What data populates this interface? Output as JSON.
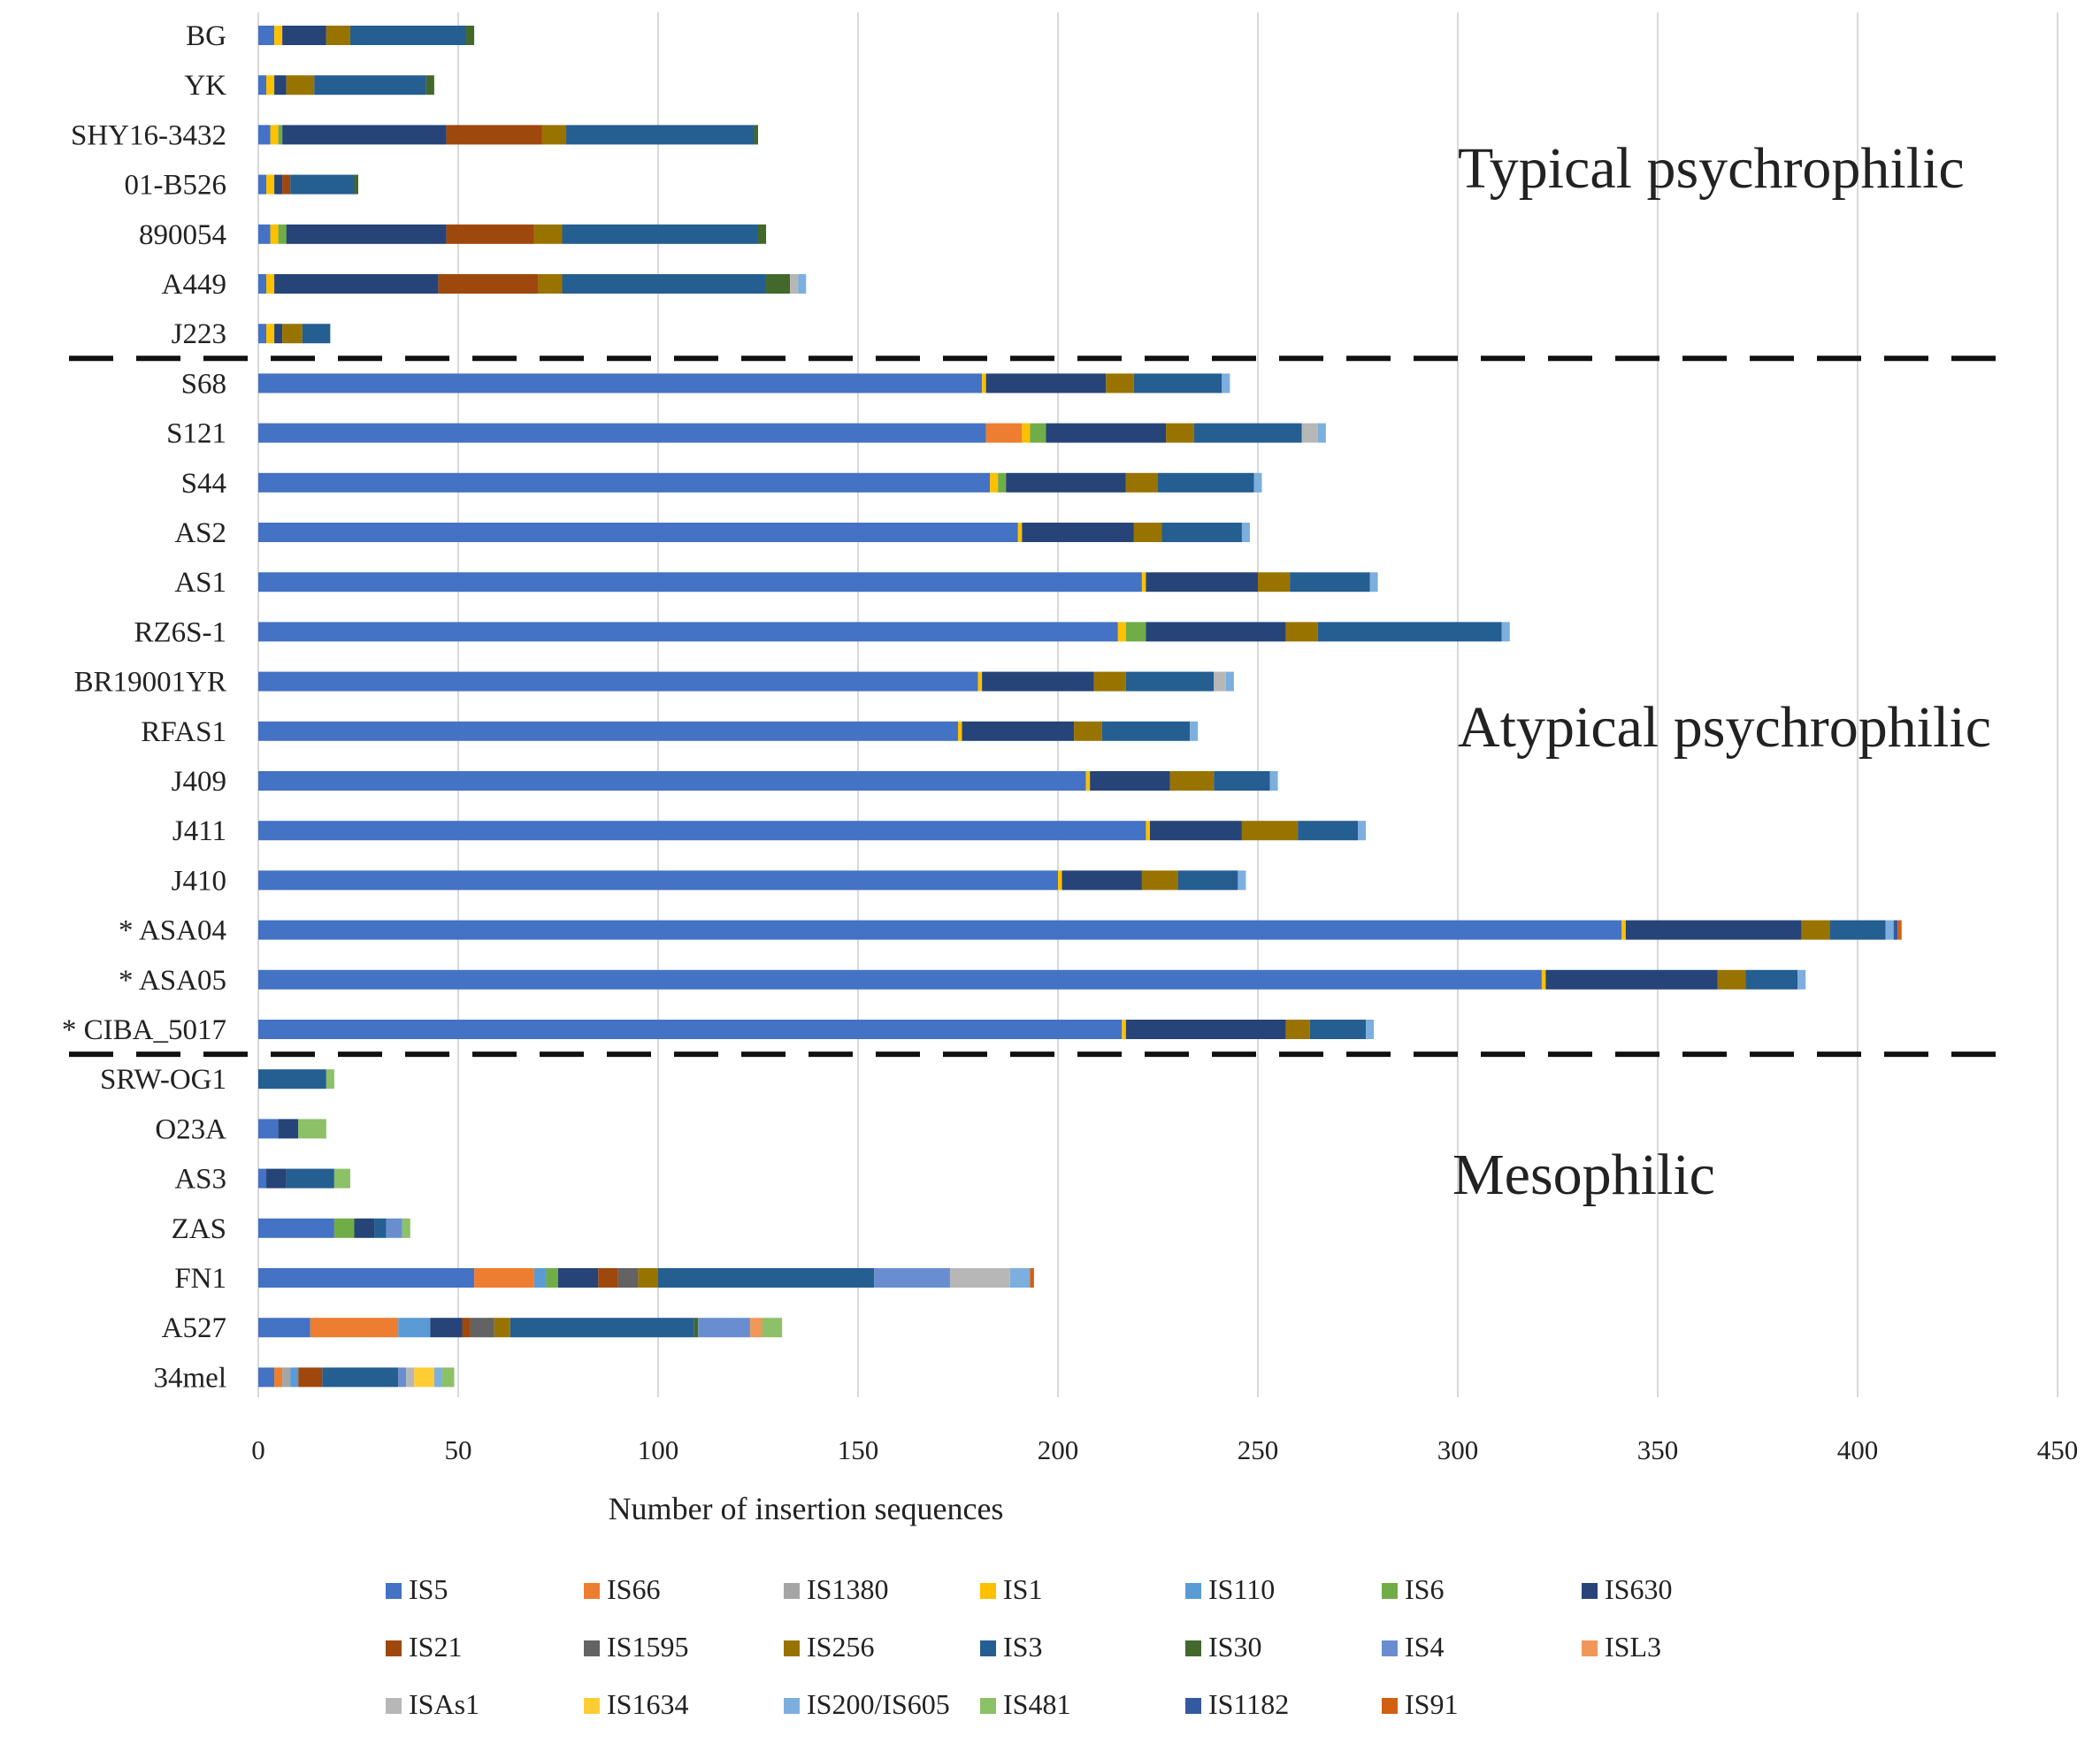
{
  "chart_data": {
    "type": "bar",
    "orientation": "horizontal",
    "stacked": true,
    "xlabel": "Number of insertion sequences",
    "xlim": [
      0,
      450
    ],
    "x_ticks": [
      "0",
      "50",
      "100",
      "150",
      "200",
      "250",
      "300",
      "350",
      "400",
      "450"
    ],
    "grid": "vertical",
    "legend_position": "bottom",
    "group_labels": [
      {
        "text": "Typical psychrophilic"
      },
      {
        "text": "Atypical psychrophilic"
      },
      {
        "text": "Mesophilic"
      }
    ],
    "categories": [
      "BG",
      "YK",
      "SHY16-3432",
      "01-B526",
      "890054",
      "A449",
      "J223",
      "S68",
      "S121",
      "S44",
      "AS2",
      "AS1",
      "RZ6S-1",
      "BR19001YR",
      "RFAS1",
      "J409",
      "J411",
      "J410",
      "* ASA04",
      "* ASA05",
      "* CIBA_5017",
      "SRW-OG1",
      "O23A",
      "AS3",
      "ZAS",
      "FN1",
      "A527",
      "34mel"
    ],
    "group_of_category": [
      0,
      0,
      0,
      0,
      0,
      0,
      0,
      1,
      1,
      1,
      1,
      1,
      1,
      1,
      1,
      1,
      1,
      1,
      1,
      1,
      1,
      2,
      2,
      2,
      2,
      2,
      2,
      2
    ],
    "series": [
      {
        "name": "IS5",
        "color": "#4472C4",
        "values": [
          4,
          2,
          3,
          2,
          3,
          2,
          2,
          181,
          182,
          183,
          190,
          221,
          215,
          180,
          175,
          207,
          222,
          200,
          341,
          321,
          216,
          0,
          5,
          2,
          19,
          54,
          13,
          4
        ]
      },
      {
        "name": "IS66",
        "color": "#ED7D31",
        "values": [
          0,
          0,
          0,
          0,
          0,
          0,
          0,
          0,
          9,
          0,
          0,
          0,
          0,
          0,
          0,
          0,
          0,
          0,
          0,
          0,
          0,
          0,
          0,
          0,
          0,
          15,
          22,
          2
        ]
      },
      {
        "name": "IS1380",
        "color": "#A5A5A5",
        "values": [
          0,
          0,
          0,
          0,
          0,
          0,
          0,
          0,
          0,
          0,
          0,
          0,
          0,
          0,
          0,
          0,
          0,
          0,
          0,
          0,
          0,
          0,
          0,
          0,
          0,
          0,
          0,
          2
        ]
      },
      {
        "name": "IS1",
        "color": "#FFC000",
        "values": [
          2,
          2,
          2,
          2,
          2,
          2,
          2,
          1,
          2,
          2,
          1,
          1,
          2,
          1,
          1,
          1,
          1,
          1,
          1,
          1,
          1,
          0,
          0,
          0,
          0,
          0,
          0,
          0
        ]
      },
      {
        "name": "IS110",
        "color": "#5B9BD5",
        "values": [
          0,
          0,
          0,
          0,
          0,
          0,
          0,
          0,
          0,
          0,
          0,
          0,
          0,
          0,
          0,
          0,
          0,
          0,
          0,
          0,
          0,
          0,
          0,
          0,
          0,
          3,
          8,
          2
        ]
      },
      {
        "name": "IS6",
        "color": "#70AD47",
        "values": [
          0,
          0,
          1,
          0,
          2,
          0,
          0,
          0,
          4,
          2,
          0,
          0,
          5,
          0,
          0,
          0,
          0,
          0,
          0,
          0,
          0,
          0,
          0,
          0,
          5,
          3,
          0,
          0
        ]
      },
      {
        "name": "IS630",
        "color": "#264478",
        "values": [
          11,
          3,
          41,
          2,
          40,
          41,
          2,
          30,
          30,
          30,
          28,
          28,
          35,
          28,
          28,
          20,
          23,
          20,
          44,
          43,
          40,
          0,
          5,
          5,
          5,
          10,
          8,
          0
        ]
      },
      {
        "name": "IS21",
        "color": "#9E480E",
        "values": [
          0,
          0,
          24,
          2,
          22,
          25,
          0,
          0,
          0,
          0,
          0,
          0,
          0,
          0,
          0,
          0,
          0,
          0,
          0,
          0,
          0,
          0,
          0,
          0,
          0,
          5,
          2,
          6
        ]
      },
      {
        "name": "IS1595",
        "color": "#636363",
        "values": [
          0,
          0,
          0,
          0,
          0,
          0,
          0,
          0,
          0,
          0,
          0,
          0,
          0,
          0,
          0,
          0,
          0,
          0,
          0,
          0,
          0,
          0,
          0,
          0,
          0,
          5,
          6,
          0
        ]
      },
      {
        "name": "IS256",
        "color": "#997300",
        "values": [
          6,
          7,
          6,
          0,
          7,
          6,
          5,
          7,
          7,
          8,
          7,
          8,
          8,
          8,
          7,
          11,
          14,
          9,
          7,
          7,
          6,
          0,
          0,
          0,
          0,
          5,
          4,
          0
        ]
      },
      {
        "name": "IS3",
        "color": "#255E91",
        "values": [
          29,
          28,
          47,
          16,
          49,
          51,
          7,
          22,
          27,
          24,
          20,
          20,
          46,
          22,
          22,
          14,
          15,
          15,
          14,
          13,
          14,
          17,
          0,
          12,
          3,
          54,
          46,
          19
        ]
      },
      {
        "name": "IS30",
        "color": "#43682B",
        "values": [
          2,
          2,
          1,
          1,
          2,
          6,
          0,
          0,
          0,
          0,
          0,
          0,
          0,
          0,
          0,
          0,
          0,
          0,
          0,
          0,
          0,
          0,
          0,
          0,
          0,
          0,
          1,
          0
        ]
      },
      {
        "name": "IS4",
        "color": "#698ED0",
        "values": [
          0,
          0,
          0,
          0,
          0,
          0,
          0,
          0,
          0,
          0,
          0,
          0,
          0,
          0,
          0,
          0,
          0,
          0,
          0,
          0,
          0,
          0,
          0,
          0,
          4,
          19,
          13,
          2
        ]
      },
      {
        "name": "ISL3",
        "color": "#F1975A",
        "values": [
          0,
          0,
          0,
          0,
          0,
          0,
          0,
          0,
          0,
          0,
          0,
          0,
          0,
          0,
          0,
          0,
          0,
          0,
          0,
          0,
          0,
          0,
          0,
          0,
          0,
          0,
          3,
          0
        ]
      },
      {
        "name": "ISAs1",
        "color": "#B7B7B7",
        "values": [
          0,
          0,
          0,
          0,
          0,
          2,
          0,
          0,
          4,
          0,
          0,
          0,
          0,
          3,
          0,
          0,
          0,
          0,
          0,
          0,
          0,
          0,
          0,
          0,
          0,
          15,
          0,
          2
        ]
      },
      {
        "name": "IS1634",
        "color": "#FFCD33",
        "values": [
          0,
          0,
          0,
          0,
          0,
          0,
          0,
          0,
          0,
          0,
          0,
          0,
          0,
          0,
          0,
          0,
          0,
          0,
          0,
          0,
          0,
          0,
          0,
          0,
          0,
          0,
          0,
          5
        ]
      },
      {
        "name": "IS200/IS605",
        "color": "#7CAFDD",
        "values": [
          0,
          0,
          0,
          0,
          0,
          2,
          0,
          2,
          2,
          2,
          2,
          2,
          2,
          2,
          2,
          2,
          2,
          2,
          2,
          2,
          2,
          0,
          0,
          0,
          0,
          5,
          0,
          2
        ]
      },
      {
        "name": "IS481",
        "color": "#8CC168",
        "values": [
          0,
          0,
          0,
          0,
          0,
          0,
          0,
          0,
          0,
          0,
          0,
          0,
          0,
          0,
          0,
          0,
          0,
          0,
          0,
          0,
          0,
          2,
          7,
          4,
          2,
          0,
          5,
          3
        ]
      },
      {
        "name": "IS1182",
        "color": "#335AA1",
        "values": [
          0,
          0,
          0,
          0,
          0,
          0,
          0,
          0,
          0,
          0,
          0,
          0,
          0,
          0,
          0,
          0,
          0,
          0,
          1,
          0,
          0,
          0,
          0,
          0,
          0,
          0,
          0,
          0
        ]
      },
      {
        "name": "IS91",
        "color": "#D26012",
        "values": [
          0,
          0,
          0,
          0,
          0,
          0,
          0,
          0,
          0,
          0,
          0,
          0,
          0,
          0,
          0,
          0,
          0,
          0,
          1,
          0,
          0,
          0,
          0,
          0,
          0,
          1,
          0,
          0
        ]
      }
    ]
  }
}
